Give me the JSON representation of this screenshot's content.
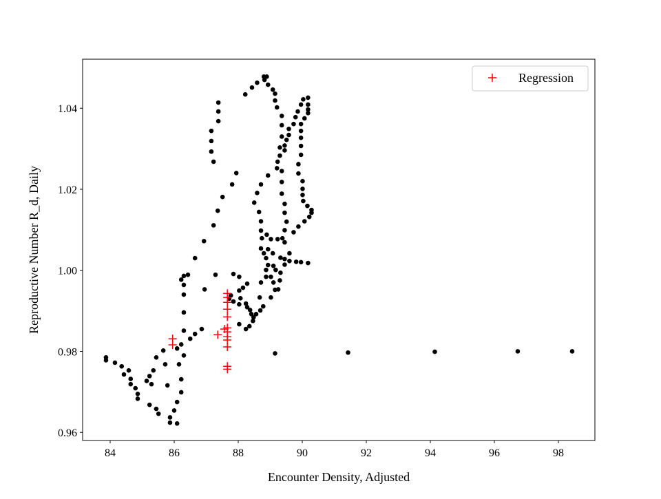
{
  "chart_data": {
    "type": "scatter",
    "title": "",
    "xlabel": "Encounter Density, Adjusted",
    "ylabel": "Reproductive Number R_d, Daily",
    "xlim": [
      83.14,
      99.14
    ],
    "ylim": [
      0.958,
      1.0521
    ],
    "xticks": [
      84,
      86,
      88,
      90,
      92,
      94,
      96,
      98
    ],
    "xtick_labels": [
      "84",
      "86",
      "88",
      "90",
      "92",
      "94",
      "96",
      "98"
    ],
    "yticks": [
      0.96,
      0.98,
      1.0,
      1.02,
      1.04
    ],
    "ytick_labels": [
      "0.96",
      "0.98",
      "1.00",
      "1.02",
      "1.04"
    ],
    "grid": false,
    "legend": {
      "placement": "top-right",
      "entries": [
        "Regression"
      ]
    },
    "series": [
      {
        "name": "",
        "marker": "circle",
        "color": "#000000",
        "points": [
          [
            83.87,
            0.9785
          ],
          [
            83.87,
            0.9778
          ],
          [
            84.15,
            0.9772
          ],
          [
            84.36,
            0.9763
          ],
          [
            84.58,
            0.9753
          ],
          [
            84.43,
            0.9743
          ],
          [
            84.64,
            0.9732
          ],
          [
            84.64,
            0.9719
          ],
          [
            84.79,
            0.9709
          ],
          [
            84.86,
            0.9695
          ],
          [
            84.86,
            0.9683
          ],
          [
            85.23,
            0.9668
          ],
          [
            85.44,
            0.9658
          ],
          [
            85.51,
            0.9646
          ],
          [
            85.87,
            0.9637
          ],
          [
            85.87,
            0.9624
          ],
          [
            86.09,
            0.9622
          ],
          [
            86.0,
            0.9654
          ],
          [
            86.09,
            0.9675
          ],
          [
            86.22,
            0.9699
          ],
          [
            86.22,
            0.9731
          ],
          [
            85.79,
            0.9716
          ],
          [
            85.29,
            0.9719
          ],
          [
            85.14,
            0.9727
          ],
          [
            85.23,
            0.9739
          ],
          [
            85.35,
            0.9753
          ],
          [
            85.72,
            0.9768
          ],
          [
            86.15,
            0.9768
          ],
          [
            85.44,
            0.9785
          ],
          [
            85.66,
            0.9802
          ],
          [
            86.09,
            0.9807
          ],
          [
            86.22,
            0.9817
          ],
          [
            86.3,
            0.979
          ],
          [
            86.5,
            0.9831
          ],
          [
            86.65,
            0.9843
          ],
          [
            86.86,
            0.9855
          ],
          [
            86.3,
            0.9851
          ],
          [
            86.3,
            0.9896
          ],
          [
            86.3,
            0.994
          ],
          [
            86.95,
            0.9953
          ],
          [
            86.3,
            0.9964
          ],
          [
            86.22,
            0.9977
          ],
          [
            86.3,
            0.9986
          ],
          [
            86.43,
            0.9989
          ],
          [
            87.29,
            0.9989
          ],
          [
            87.85,
            0.9991
          ],
          [
            88.03,
            0.9984
          ],
          [
            88.28,
            0.9967
          ],
          [
            88.15,
            0.9957
          ],
          [
            88.03,
            0.995
          ],
          [
            87.77,
            0.9938
          ],
          [
            87.72,
            0.993
          ],
          [
            87.85,
            0.9923
          ],
          [
            88.07,
            0.9931
          ],
          [
            88.03,
            0.9916
          ],
          [
            88.24,
            0.9918
          ],
          [
            88.28,
            0.9909
          ],
          [
            88.37,
            0.9902
          ],
          [
            88.41,
            0.9892
          ],
          [
            88.46,
            0.9875
          ],
          [
            88.35,
            0.9862
          ],
          [
            88.24,
            0.9855
          ],
          [
            88.03,
            0.9867
          ],
          [
            88.78,
            0.9911
          ],
          [
            88.69,
            0.9901
          ],
          [
            88.56,
            0.9892
          ],
          [
            88.48,
            0.9884
          ],
          [
            88.67,
            0.9933
          ],
          [
            89.25,
            0.9953
          ],
          [
            89.3,
            0.9975
          ],
          [
            87.38,
            1.0414
          ],
          [
            87.38,
            1.0392
          ],
          [
            87.38,
            1.0368
          ],
          [
            87.16,
            1.0344
          ],
          [
            87.16,
            1.0319
          ],
          [
            87.16,
            1.0293
          ],
          [
            87.23,
            1.0268
          ],
          [
            87.94,
            1.024
          ],
          [
            87.81,
            1.0212
          ],
          [
            87.51,
            1.0181
          ],
          [
            87.36,
            1.0147
          ],
          [
            87.23,
            1.0111
          ],
          [
            86.93,
            1.0072
          ],
          [
            86.65,
            1.003
          ],
          [
            88.22,
            1.0434
          ],
          [
            88.43,
            1.0451
          ],
          [
            88.59,
            1.0463
          ],
          [
            88.8,
            1.0478
          ],
          [
            88.89,
            1.0478
          ],
          [
            88.82,
            1.047
          ],
          [
            88.93,
            1.0458
          ],
          [
            89.08,
            1.0446
          ],
          [
            89.15,
            1.0436
          ],
          [
            89.15,
            1.0419
          ],
          [
            89.21,
            1.0402
          ],
          [
            89.36,
            1.0381
          ],
          [
            89.36,
            1.0358
          ],
          [
            89.36,
            1.033
          ],
          [
            89.45,
            1.0308
          ],
          [
            89.3,
            1.0303
          ],
          [
            89.45,
            1.0296
          ],
          [
            89.3,
            1.0283
          ],
          [
            89.23,
            1.0268
          ],
          [
            89.21,
            1.0252
          ],
          [
            89.36,
            1.0245
          ],
          [
            89.36,
            1.0218
          ],
          [
            89.36,
            1.0189
          ],
          [
            89.45,
            1.0164
          ],
          [
            89.45,
            1.0142
          ],
          [
            89.51,
            1.012
          ],
          [
            89.45,
            1.0099
          ],
          [
            88.93,
            1.0234
          ],
          [
            88.71,
            1.0212
          ],
          [
            88.59,
            1.0191
          ],
          [
            88.5,
            1.0167
          ],
          [
            88.65,
            1.0144
          ],
          [
            88.71,
            1.0121
          ],
          [
            88.71,
            1.0098
          ],
          [
            88.74,
            1.0079
          ],
          [
            88.89,
            1.0088
          ],
          [
            89.02,
            1.0077
          ],
          [
            89.23,
            1.0077
          ],
          [
            89.38,
            1.0079
          ],
          [
            89.45,
            1.0069
          ],
          [
            88.71,
            1.0054
          ],
          [
            88.8,
            1.0042
          ],
          [
            88.93,
            1.0052
          ],
          [
            89.08,
            1.0042
          ],
          [
            88.87,
            1.003
          ],
          [
            89.32,
            1.0031
          ],
          [
            89.45,
            1.0028
          ],
          [
            89.6,
            1.0023
          ],
          [
            89.81,
            1.0021
          ],
          [
            89.96,
            1.002
          ],
          [
            90.18,
            1.0018
          ],
          [
            89.45,
            1.0014
          ],
          [
            89.6,
            1.0042
          ],
          [
            88.93,
            1.0013
          ],
          [
            89.1,
            1.0011
          ],
          [
            88.87,
            1.0001
          ],
          [
            89.17,
            1.0001
          ],
          [
            89.32,
            0.9994
          ],
          [
            88.87,
            0.9984
          ],
          [
            89.02,
            0.9984
          ],
          [
            88.71,
            0.997
          ],
          [
            89.1,
            0.997
          ],
          [
            89.15,
            0.9952
          ],
          [
            89.02,
            0.9933
          ],
          [
            90.18,
            1.0426
          ],
          [
            90.03,
            1.0422
          ],
          [
            89.96,
            1.0409
          ],
          [
            90.18,
            1.0409
          ],
          [
            90.18,
            1.0397
          ],
          [
            90.18,
            1.0388
          ],
          [
            89.86,
            1.0392
          ],
          [
            89.79,
            1.0378
          ],
          [
            90.07,
            1.0375
          ],
          [
            89.73,
            1.0361
          ],
          [
            89.96,
            1.0361
          ],
          [
            89.58,
            1.0349
          ],
          [
            89.58,
            1.0334
          ],
          [
            89.51,
            1.0322
          ],
          [
            89.96,
            1.0344
          ],
          [
            89.96,
            1.0327
          ],
          [
            89.96,
            1.0307
          ],
          [
            89.96,
            1.0285
          ],
          [
            89.88,
            1.0262
          ],
          [
            89.88,
            1.0239
          ],
          [
            90.01,
            1.022
          ],
          [
            90.01,
            1.0201
          ],
          [
            90.01,
            1.0186
          ],
          [
            90.03,
            1.0171
          ],
          [
            90.16,
            1.0159
          ],
          [
            90.29,
            1.0149
          ],
          [
            90.29,
            1.0142
          ],
          [
            90.22,
            1.0132
          ],
          [
            90.07,
            1.0121
          ],
          [
            89.88,
            1.0108
          ],
          [
            89.73,
            1.0094
          ],
          [
            89.15,
            0.9795
          ],
          [
            91.43,
            0.9797
          ],
          [
            94.14,
            0.9799
          ],
          [
            96.73,
            0.98
          ],
          [
            98.43,
            0.98
          ]
        ]
      },
      {
        "name": "Regression",
        "marker": "plus",
        "color": "#ff0000",
        "points": [
          [
            87.66,
            0.9943
          ],
          [
            87.66,
            0.9933
          ],
          [
            87.66,
            0.9921
          ],
          [
            87.66,
            0.9904
          ],
          [
            87.66,
            0.9885
          ],
          [
            87.66,
            0.9858
          ],
          [
            87.57,
            0.9855
          ],
          [
            87.66,
            0.9848
          ],
          [
            87.66,
            0.9836
          ],
          [
            87.66,
            0.9828
          ],
          [
            87.66,
            0.9811
          ],
          [
            87.36,
            0.9841
          ],
          [
            85.95,
            0.9831
          ],
          [
            85.95,
            0.9816
          ],
          [
            87.66,
            0.9763
          ],
          [
            87.66,
            0.9756
          ]
        ]
      }
    ]
  }
}
